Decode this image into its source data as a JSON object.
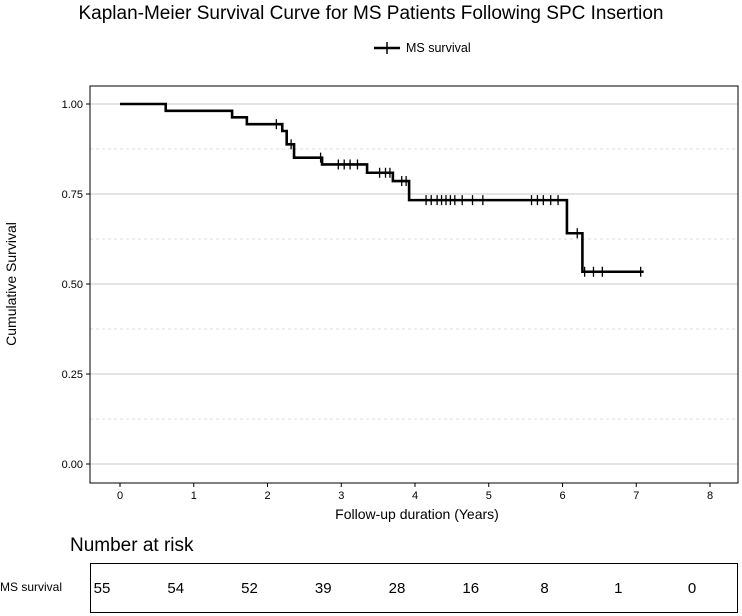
{
  "chart_data": {
    "type": "line",
    "title": "Kaplan-Meier Survival Curve for MS Patients Following SPC Insertion",
    "xlabel": "Follow-up duration (Years)",
    "ylabel": "Cumulative Survival",
    "xlim": [
      0,
      8
    ],
    "ylim": [
      0,
      1
    ],
    "x_ticks": [
      0,
      1,
      2,
      3,
      4,
      5,
      6,
      7,
      8
    ],
    "y_ticks": [
      0.0,
      0.25,
      0.5,
      0.75,
      1.0
    ],
    "y_tick_labels": [
      "0.00",
      "0.25",
      "0.50",
      "0.75",
      "1.00"
    ],
    "grid": true,
    "legend_position": "top-center",
    "series": [
      {
        "name": "MS survival",
        "color": "#000000",
        "step": true,
        "x": [
          0,
          0.62,
          1.52,
          1.72,
          2.2,
          2.26,
          2.36,
          2.74,
          3.35,
          3.7,
          3.92,
          6.06,
          6.27,
          7.1
        ],
        "y": [
          1.0,
          0.981,
          0.963,
          0.944,
          0.925,
          0.888,
          0.851,
          0.832,
          0.809,
          0.786,
          0.733,
          0.641,
          0.534,
          0.534
        ],
        "censored": [
          {
            "x": 2.12,
            "y": 0.944
          },
          {
            "x": 2.32,
            "y": 0.888
          },
          {
            "x": 2.72,
            "y": 0.851
          },
          {
            "x": 2.96,
            "y": 0.832
          },
          {
            "x": 3.04,
            "y": 0.832
          },
          {
            "x": 3.12,
            "y": 0.832
          },
          {
            "x": 3.22,
            "y": 0.832
          },
          {
            "x": 3.52,
            "y": 0.809
          },
          {
            "x": 3.6,
            "y": 0.809
          },
          {
            "x": 3.66,
            "y": 0.809
          },
          {
            "x": 3.82,
            "y": 0.786
          },
          {
            "x": 3.88,
            "y": 0.786
          },
          {
            "x": 4.15,
            "y": 0.733
          },
          {
            "x": 4.22,
            "y": 0.733
          },
          {
            "x": 4.3,
            "y": 0.733
          },
          {
            "x": 4.36,
            "y": 0.733
          },
          {
            "x": 4.42,
            "y": 0.733
          },
          {
            "x": 4.48,
            "y": 0.733
          },
          {
            "x": 4.54,
            "y": 0.733
          },
          {
            "x": 4.64,
            "y": 0.733
          },
          {
            "x": 4.78,
            "y": 0.733
          },
          {
            "x": 4.92,
            "y": 0.733
          },
          {
            "x": 5.58,
            "y": 0.733
          },
          {
            "x": 5.66,
            "y": 0.733
          },
          {
            "x": 5.74,
            "y": 0.733
          },
          {
            "x": 5.84,
            "y": 0.733
          },
          {
            "x": 5.94,
            "y": 0.733
          },
          {
            "x": 6.2,
            "y": 0.641
          },
          {
            "x": 6.3,
            "y": 0.534
          },
          {
            "x": 6.42,
            "y": 0.534
          },
          {
            "x": 6.54,
            "y": 0.534
          },
          {
            "x": 7.06,
            "y": 0.534
          }
        ]
      }
    ]
  },
  "risk_table": {
    "title": "Number at risk",
    "strata_label": "MS survival",
    "times": [
      0,
      1,
      2,
      3,
      4,
      5,
      6,
      7,
      8
    ],
    "values": [
      "55",
      "54",
      "52",
      "39",
      "28",
      "16",
      "8",
      "1",
      "0"
    ]
  }
}
